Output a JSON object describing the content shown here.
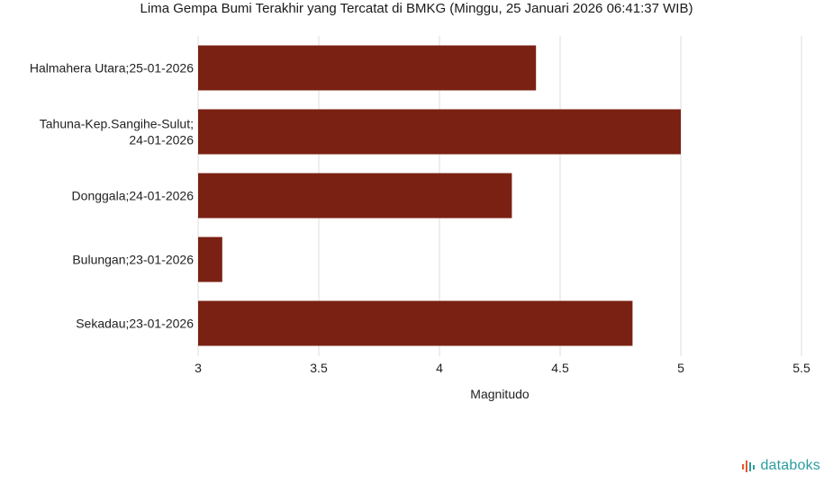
{
  "chart_data": {
    "type": "bar",
    "orientation": "horizontal",
    "title": "Lima Gempa Bumi Terakhir yang Tercatat di BMKG (Minggu, 25 Januari 2026 06:41:37 WIB)",
    "categories": [
      [
        "Halmahera Utara;25-01-2026"
      ],
      [
        "Tahuna-Kep.Sangihe-Sulut;",
        "24-01-2026"
      ],
      [
        "Donggala;24-01-2026"
      ],
      [
        "Bulungan;23-01-2026"
      ],
      [
        "Sekadau;23-01-2026"
      ]
    ],
    "values": [
      4.4,
      5.0,
      4.3,
      3.1,
      4.8
    ],
    "xlabel": "Magnitudo",
    "ylabel": "",
    "xlim": [
      3,
      5.5
    ],
    "xticks": [
      "3",
      "3.5",
      "4",
      "4.5",
      "5",
      "5.5"
    ],
    "grid": true,
    "bar_color": "#7a2113"
  },
  "brand": {
    "name": "databoks",
    "icon": "databoks-logo-icon",
    "color": "#2a9d9e",
    "accent": "#e8562a"
  }
}
